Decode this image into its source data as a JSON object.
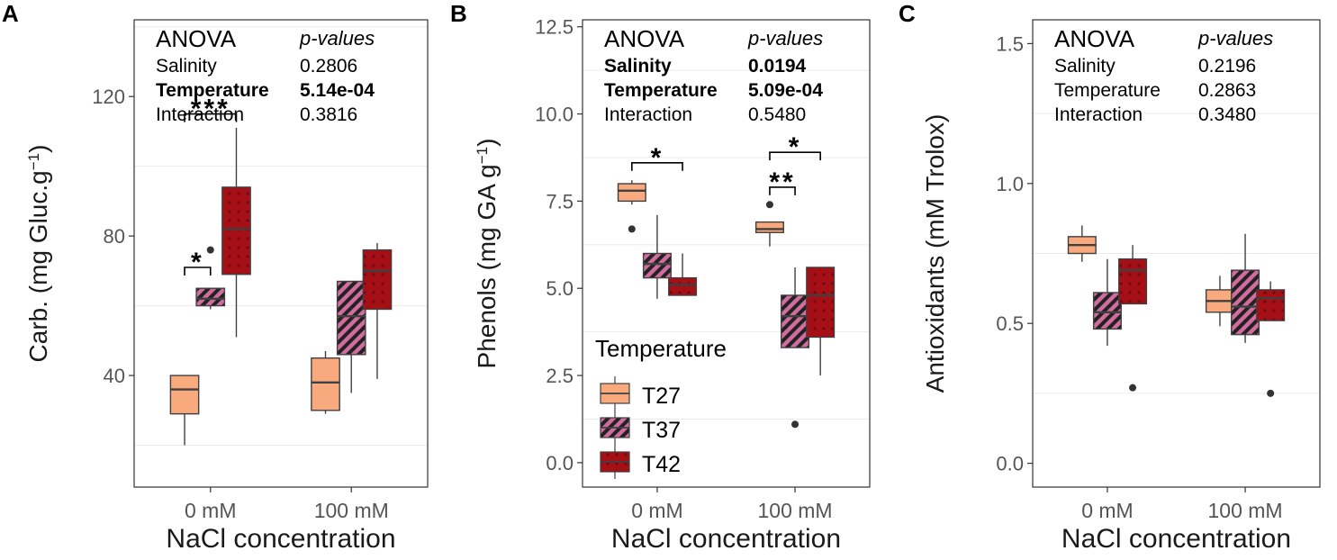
{
  "colors": {
    "t27_fill": "#F9A97E",
    "t37_fill": "#D36C9E",
    "t42_fill": "#A50F15",
    "box_stroke": "#404040",
    "frame_stroke": "#333333",
    "grid": "#EBEBEB",
    "text": "#1a1a1a"
  },
  "chart_data": [
    {
      "type": "box",
      "panel_label": "A",
      "ylabel": "Carb. (mg Gluc.g",
      "ylabel_sup": "−1",
      "ylabel_tail": ")",
      "xlabel": "NaCl concentration",
      "categories": [
        "0 mM",
        "100 mM"
      ],
      "ylim": [
        8,
        142
      ],
      "yticks": [
        40,
        80,
        120
      ],
      "ytick_labels": [
        "40",
        "80",
        "120"
      ],
      "minor_grid": [
        20,
        60,
        100,
        140
      ],
      "series": [
        {
          "name": "T27",
          "boxes": [
            {
              "min": 20,
              "q1": 29,
              "median": 36,
              "q3": 40,
              "max": 40,
              "outliers": []
            },
            {
              "min": 29,
              "q1": 30,
              "median": 38,
              "q3": 45,
              "max": 47,
              "outliers": []
            }
          ]
        },
        {
          "name": "T37",
          "boxes": [
            {
              "min": 59,
              "q1": 60,
              "median": 62,
              "q3": 65,
              "max": 65,
              "outliers": [
                76
              ]
            },
            {
              "min": 35,
              "q1": 46,
              "median": 57,
              "q3": 67,
              "max": 67,
              "outliers": []
            }
          ]
        },
        {
          "name": "T42",
          "boxes": [
            {
              "min": 51,
              "q1": 69,
              "median": 82,
              "q3": 94,
              "max": 111,
              "outliers": []
            },
            {
              "min": 39,
              "q1": 59,
              "median": 70,
              "q3": 76,
              "max": 78,
              "outliers": []
            }
          ]
        }
      ],
      "anova": {
        "title": "ANOVA",
        "pheader": "p-values",
        "rows": [
          {
            "term": "Salinity",
            "p": "0.2806",
            "bold": false
          },
          {
            "term": "Temperature",
            "p": "5.14e-04",
            "bold": true
          },
          {
            "term": "Interaction",
            "p": "0.3816",
            "bold": false
          }
        ]
      },
      "brackets": [
        {
          "group": 0,
          "from": 0,
          "to": 1,
          "y": 71,
          "label": "*"
        },
        {
          "group": 0,
          "from": 0,
          "to": 2,
          "y": 115,
          "label": "***"
        }
      ],
      "legend": null
    },
    {
      "type": "box",
      "panel_label": "B",
      "ylabel": "Phenols (mg GA g",
      "ylabel_sup": "−1",
      "ylabel_tail": ")",
      "xlabel": "NaCl concentration",
      "categories": [
        "0 mM",
        "100 mM"
      ],
      "ylim": [
        -0.7,
        12.7
      ],
      "yticks": [
        0,
        2.5,
        5,
        7.5,
        10,
        12.5
      ],
      "ytick_labels": [
        "0.0",
        "2.5",
        "5.0",
        "7.5",
        "10.0",
        "12.5"
      ],
      "minor_grid": [
        1.25,
        3.75,
        6.25,
        8.75,
        11.25
      ],
      "series": [
        {
          "name": "T27",
          "boxes": [
            {
              "min": 7.4,
              "q1": 7.5,
              "median": 7.8,
              "q3": 8.0,
              "max": 8.1,
              "outliers": [
                6.7
              ]
            },
            {
              "min": 6.2,
              "q1": 6.6,
              "median": 6.7,
              "q3": 6.9,
              "max": 6.9,
              "outliers": [
                7.4
              ]
            }
          ]
        },
        {
          "name": "T37",
          "boxes": [
            {
              "min": 4.7,
              "q1": 5.3,
              "median": 5.7,
              "q3": 6.0,
              "max": 7.1,
              "outliers": []
            },
            {
              "min": 3.3,
              "q1": 3.3,
              "median": 4.2,
              "q3": 4.8,
              "max": 5.6,
              "outliers": [
                1.1
              ]
            }
          ]
        },
        {
          "name": "T42",
          "boxes": [
            {
              "min": 4.8,
              "q1": 4.8,
              "median": 5.1,
              "q3": 5.3,
              "max": 6.0,
              "outliers": []
            },
            {
              "min": 2.5,
              "q1": 3.6,
              "median": 4.8,
              "q3": 5.6,
              "max": 5.6,
              "outliers": []
            }
          ]
        }
      ],
      "anova": {
        "title": "ANOVA",
        "pheader": "p-values",
        "rows": [
          {
            "term": "Salinity",
            "p": "0.0194",
            "bold": true
          },
          {
            "term": "Temperature",
            "p": "5.09e-04",
            "bold": true
          },
          {
            "term": "Interaction",
            "p": "0.5480",
            "bold": false
          }
        ]
      },
      "brackets": [
        {
          "group": 0,
          "from": 0,
          "to": 2,
          "y": 8.6,
          "label": "*"
        },
        {
          "group": 1,
          "from": 0,
          "to": 1,
          "y": 7.9,
          "label": "**"
        },
        {
          "group": 1,
          "from": 0,
          "to": 2,
          "y": 8.9,
          "label": "*"
        }
      ],
      "legend": {
        "title": "Temperature",
        "items": [
          "T27",
          "T37",
          "T42"
        ]
      }
    },
    {
      "type": "box",
      "panel_label": "C",
      "ylabel": "Antioxidants (mM Trolox)",
      "ylabel_sup": "",
      "ylabel_tail": "",
      "xlabel": "NaCl concentration",
      "categories": [
        "0 mM",
        "100 mM"
      ],
      "ylim": [
        -0.085,
        1.585
      ],
      "yticks": [
        0,
        0.5,
        1.0,
        1.5
      ],
      "ytick_labels": [
        "0.0",
        "0.5",
        "1.0",
        "1.5"
      ],
      "minor_grid": [
        0.25,
        0.75,
        1.25
      ],
      "series": [
        {
          "name": "T27",
          "boxes": [
            {
              "min": 0.72,
              "q1": 0.75,
              "median": 0.78,
              "q3": 0.81,
              "max": 0.85,
              "outliers": []
            },
            {
              "min": 0.49,
              "q1": 0.54,
              "median": 0.58,
              "q3": 0.62,
              "max": 0.67,
              "outliers": []
            }
          ]
        },
        {
          "name": "T37",
          "boxes": [
            {
              "min": 0.42,
              "q1": 0.48,
              "median": 0.54,
              "q3": 0.61,
              "max": 0.73,
              "outliers": []
            },
            {
              "min": 0.43,
              "q1": 0.46,
              "median": 0.56,
              "q3": 0.69,
              "max": 0.82,
              "outliers": []
            }
          ]
        },
        {
          "name": "T42",
          "boxes": [
            {
              "min": 0.57,
              "q1": 0.57,
              "median": 0.69,
              "q3": 0.73,
              "max": 0.78,
              "outliers": [
                0.27
              ]
            },
            {
              "min": 0.51,
              "q1": 0.51,
              "median": 0.59,
              "q3": 0.62,
              "max": 0.65,
              "outliers": [
                0.25
              ]
            }
          ]
        }
      ],
      "anova": {
        "title": "ANOVA",
        "pheader": "p-values",
        "rows": [
          {
            "term": "Salinity",
            "p": "0.2196",
            "bold": false
          },
          {
            "term": "Temperature",
            "p": "0.2863",
            "bold": false
          },
          {
            "term": "Interaction",
            "p": "0.3480",
            "bold": false
          }
        ]
      },
      "brackets": [],
      "legend": null
    }
  ]
}
